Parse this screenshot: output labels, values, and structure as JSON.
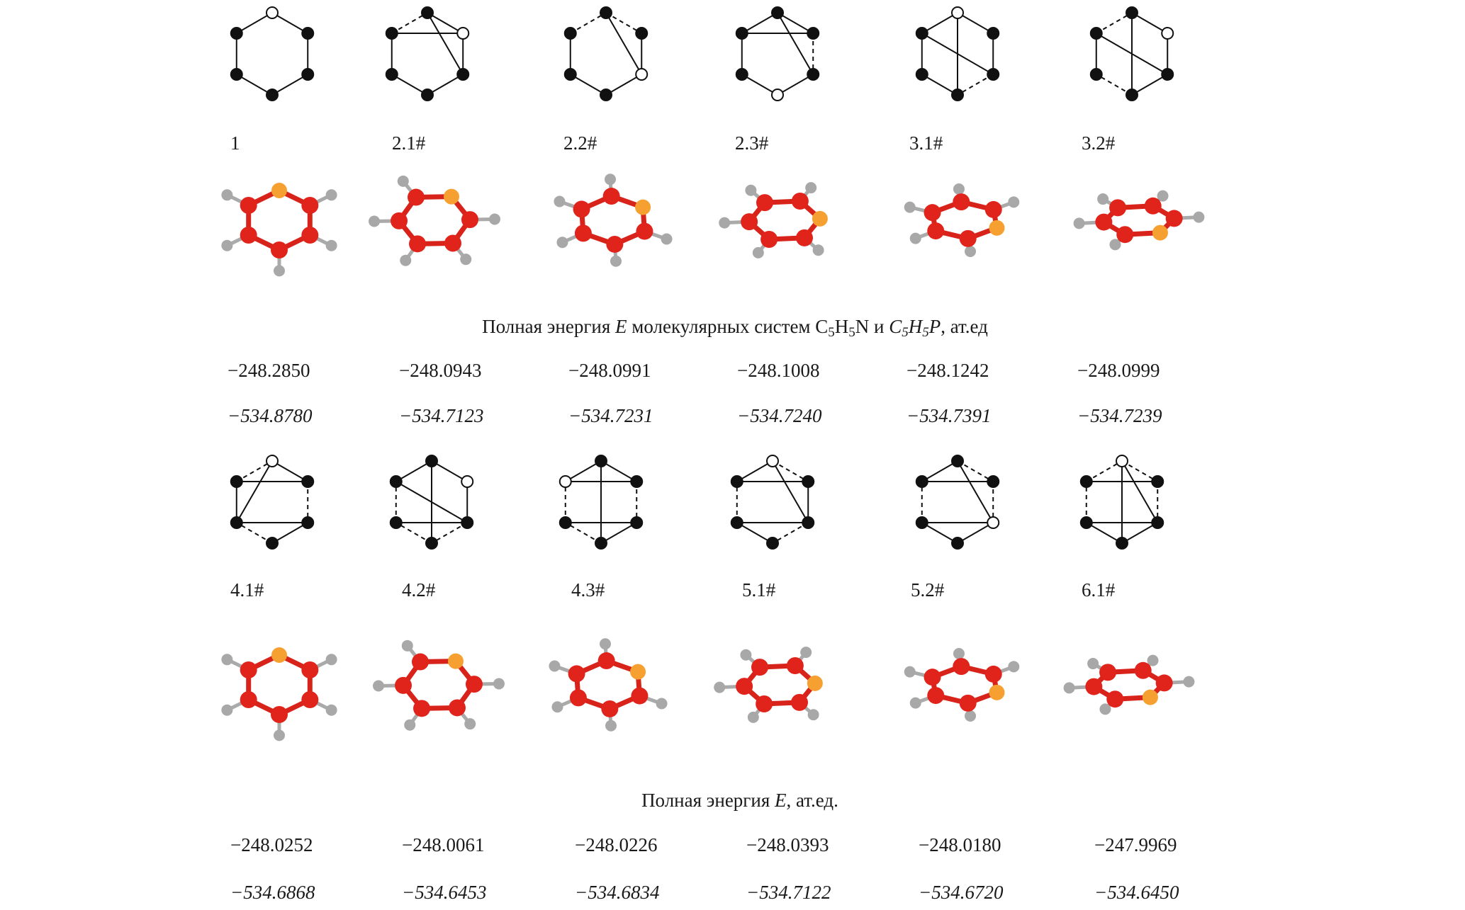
{
  "panels": [
    {
      "items": [
        {
          "label": "1",
          "energy_n": "−248.2850",
          "energy_p": "−534.8780"
        },
        {
          "label": "2.1#",
          "energy_n": "−248.0943",
          "energy_p": "−534.7123"
        },
        {
          "label": "2.2#",
          "energy_n": "−248.0991",
          "energy_p": "−534.7231"
        },
        {
          "label": "2.3#",
          "energy_n": "−248.1008",
          "energy_p": "−534.7240"
        },
        {
          "label": "3.1#",
          "energy_n": "−248.1242",
          "energy_p": "−534.7391"
        },
        {
          "label": "3.2#",
          "energy_n": "−248.0999",
          "energy_p": "−534.7239"
        }
      ],
      "caption": [
        "Полная энергия ",
        "E",
        " молекулярных систем C",
        "5",
        "H",
        "5",
        "N и ",
        "C",
        "5",
        "H",
        "5",
        "P",
        ", ат.ед"
      ]
    },
    {
      "items": [
        {
          "label": "4.1#",
          "energy_n": "−248.0252",
          "energy_p": "−534.6868"
        },
        {
          "label": "4.2#",
          "energy_n": "−248.0061",
          "energy_p": "−534.6453"
        },
        {
          "label": "4.3#",
          "energy_n": "−248.0226",
          "energy_p": "−534.6834"
        },
        {
          "label": "5.1#",
          "energy_n": "−248.0393",
          "energy_p": "−534.7122"
        },
        {
          "label": "5.2#",
          "energy_n": "−248.0180",
          "energy_p": "−534.6720"
        },
        {
          "label": "6.1#",
          "energy_n": "−247.9969",
          "energy_p": "−534.6450"
        }
      ],
      "caption": [
        "Полная энергия ",
        "E",
        ", ат.ед."
      ]
    }
  ]
}
